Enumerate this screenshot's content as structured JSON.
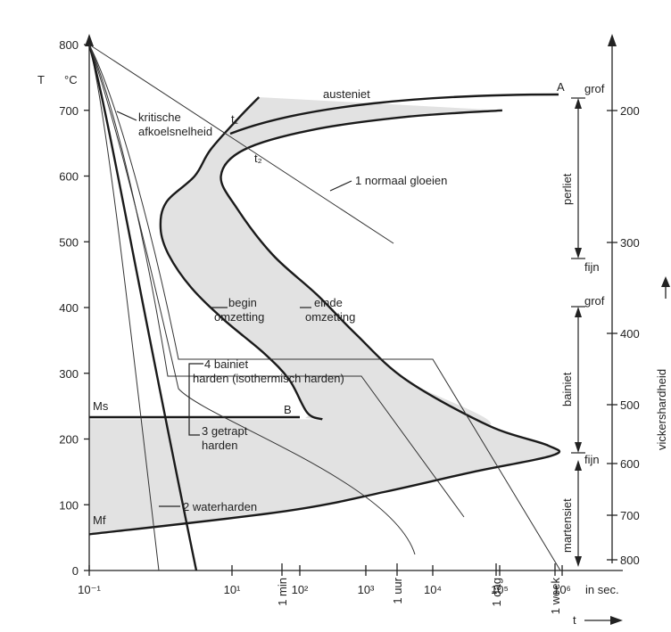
{
  "chart_data": {
    "type": "line",
    "title": "",
    "y_axis": {
      "symbol": "T",
      "unit": "°C",
      "min": 0,
      "max": 800,
      "ticks": [
        "0",
        "100",
        "200",
        "300",
        "400",
        "500",
        "600",
        "700",
        "800"
      ]
    },
    "x_axis": {
      "symbol": "t",
      "unit": "in sec.",
      "scale": "log",
      "ticks": [
        "10⁻¹",
        "10¹",
        "10²",
        "10³",
        "10⁴",
        "10⁵",
        "10⁶"
      ],
      "time_marks": [
        "1 min",
        "1 uur",
        "1 dag",
        "1 week"
      ]
    },
    "right_axis": {
      "title": "vickershardheid",
      "ticks": [
        "200",
        "300",
        "400",
        "500",
        "600",
        "700",
        "800"
      ]
    },
    "phases": {
      "perlite": "perliet",
      "bainite": "bainiet",
      "martensite": "martensiet",
      "coarse": "grof",
      "fine": "fijn",
      "austenite": "austeniet"
    },
    "labels": {
      "ms": "Ms",
      "mf": "Mf",
      "a": "A",
      "b": "B",
      "t1": "t₁",
      "t2": "t₂",
      "critical_line1": "kritische",
      "critical_line2": "afkoelsnelheid",
      "begin_line1": "begin",
      "begin_line2": "omzetting",
      "end_line1": "einde",
      "end_line2": "omzetting",
      "bainite_line1": "4 bainiet",
      "bainite_line2": "harden (isothermisch harden)",
      "stepped_line1": "3 getrapt",
      "stepped_line2": "harden",
      "water": "2 waterharden",
      "annealing": "1 normaal gloeien"
    },
    "curves": {
      "begin_transformation": [
        [
          25,
          720
        ],
        [
          13,
          690
        ],
        [
          5,
          640
        ],
        [
          3,
          600
        ],
        [
          1.2,
          560
        ],
        [
          1,
          520
        ],
        [
          1.3,
          480
        ],
        [
          2.7,
          430
        ],
        [
          8,
          380
        ],
        [
          30,
          330
        ],
        [
          70,
          290
        ],
        [
          130,
          240
        ],
        [
          220,
          230
        ]
      ],
      "end_transformation": [
        [
          110000,
          700
        ],
        [
          4000,
          690
        ],
        [
          150,
          670
        ],
        [
          15,
          640
        ],
        [
          7,
          600
        ],
        [
          12,
          550
        ],
        [
          40,
          480
        ],
        [
          180,
          420
        ],
        [
          700,
          360
        ],
        [
          4000,
          290
        ],
        [
          70000,
          220
        ],
        [
          600000,
          190
        ],
        [
          700000,
          175
        ],
        [
          40000,
          150
        ],
        [
          2000,
          120
        ],
        [
          60,
          90
        ],
        [
          0.1,
          55
        ]
      ],
      "ms_temperature": 230,
      "mf_temperature": 55
    }
  }
}
